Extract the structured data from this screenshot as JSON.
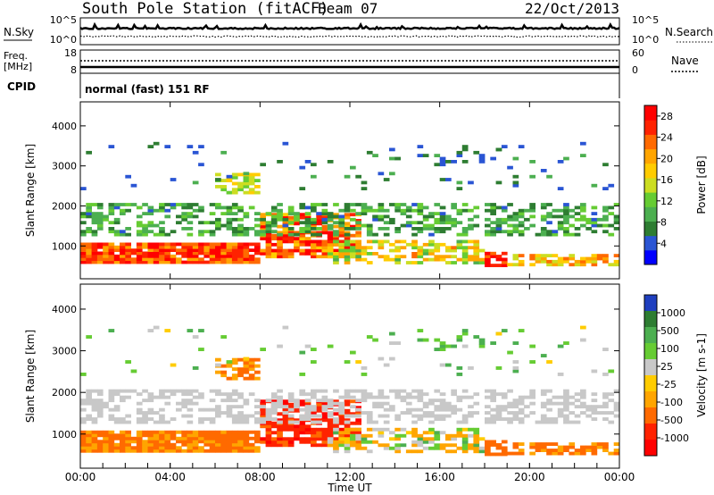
{
  "header": {
    "station": "South Pole Station (fitACF)",
    "beam": "Beam 07",
    "date": "22/Oct/2013"
  },
  "status_panels": {
    "nsky_label": "N.Sky",
    "nsearch_label": "N.Search",
    "noise_ticks": [
      "10^5",
      "10^0"
    ],
    "freq_label_1": "Freq.",
    "freq_label_2": "[MHz]",
    "freq_ticks": [
      "18",
      "8"
    ],
    "nave_label": "Nave",
    "nave_ticks": [
      "60",
      "0"
    ],
    "cpid_label": "CPID",
    "cpid_value": "normal (fast) 151 RF"
  },
  "chart_data": [
    {
      "type": "heatmap",
      "quantity": "Power",
      "ylabel": "Slant Range [km]",
      "colorbar_label": "Power [dB]",
      "x_range": [
        "00:00",
        "24:00"
      ],
      "ylim": [
        180,
        4600
      ],
      "y_ticks": [
        1000,
        2000,
        3000,
        4000
      ],
      "colorbar_ticks": [
        4,
        8,
        12,
        16,
        20,
        24,
        28
      ],
      "colorbar_range": [
        0,
        30
      ],
      "colors": [
        "#0000ff",
        "#2a55d4",
        "#2e7d32",
        "#4caf50",
        "#66cc33",
        "#ccdd22",
        "#ffcc00",
        "#ffa500",
        "#ff6a00",
        "#ff2200",
        "#ff0000"
      ]
    },
    {
      "type": "heatmap",
      "quantity": "Velocity",
      "ylabel": "Slant Range [km]",
      "colorbar_label": "Velocity [m s-1]",
      "x_range": [
        "00:00",
        "24:00"
      ],
      "ylim": [
        180,
        4600
      ],
      "y_ticks": [
        1000,
        2000,
        3000,
        4000
      ],
      "colorbar_ticks": [
        "1000",
        "500",
        "100",
        "25",
        "-25",
        "-100",
        "-500",
        "-1000"
      ],
      "colorbar_range": [
        -1200,
        1200
      ],
      "colors": [
        "#1f3fbf",
        "#2e7d32",
        "#4caf50",
        "#66cc33",
        "#c8c8c8",
        "#ffcc00",
        "#ffa500",
        "#ff6a00",
        "#ff2200",
        "#ff0000"
      ]
    }
  ],
  "time_axis": {
    "ticks": [
      "00:00",
      "04:00",
      "08:00",
      "12:00",
      "16:00",
      "20:00",
      "00:00"
    ],
    "label": "Time UT"
  }
}
